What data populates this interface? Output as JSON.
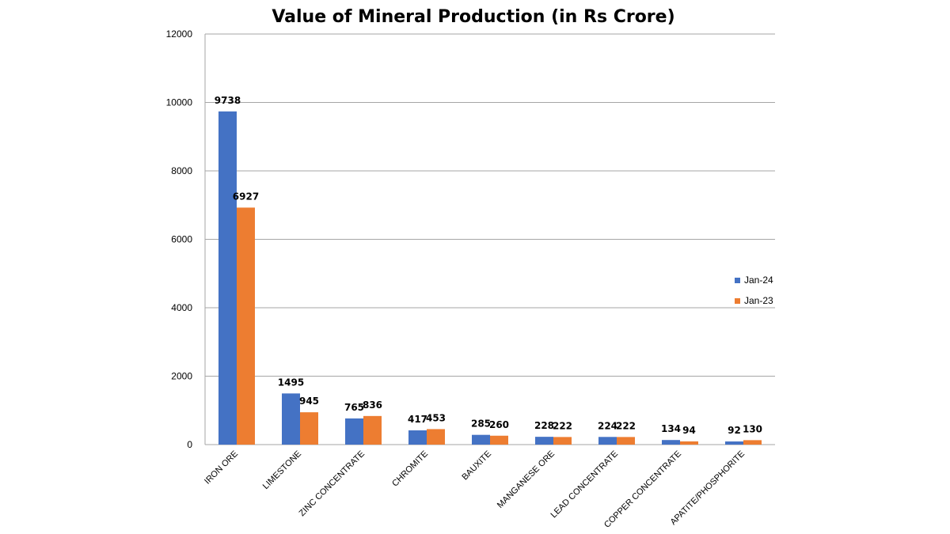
{
  "chart_data": {
    "type": "bar",
    "title": "Value of Mineral Production (in Rs Crore)",
    "xlabel": "",
    "ylabel": "",
    "ylim": [
      0,
      12000
    ],
    "yticks": [
      0,
      2000,
      4000,
      6000,
      8000,
      10000,
      12000
    ],
    "grid": true,
    "legend_position": "right",
    "categories": [
      "IRON ORE",
      "LIMESTONE",
      "ZINC CONCENTRATE",
      "CHROMITE",
      "BAUXITE",
      "MANGANESE ORE",
      "LEAD CONCENTRATE",
      "COPPER CONCENTRATE",
      "APATITE/PHOSPHORITE"
    ],
    "series": [
      {
        "name": "Jan-24",
        "color": "#4472C4",
        "values": [
          9738,
          1495,
          765,
          417,
          285,
          228,
          224,
          134,
          92
        ]
      },
      {
        "name": "Jan-23",
        "color": "#ED7D31",
        "values": [
          6927,
          945,
          836,
          453,
          260,
          222,
          222,
          94,
          130
        ]
      }
    ]
  }
}
